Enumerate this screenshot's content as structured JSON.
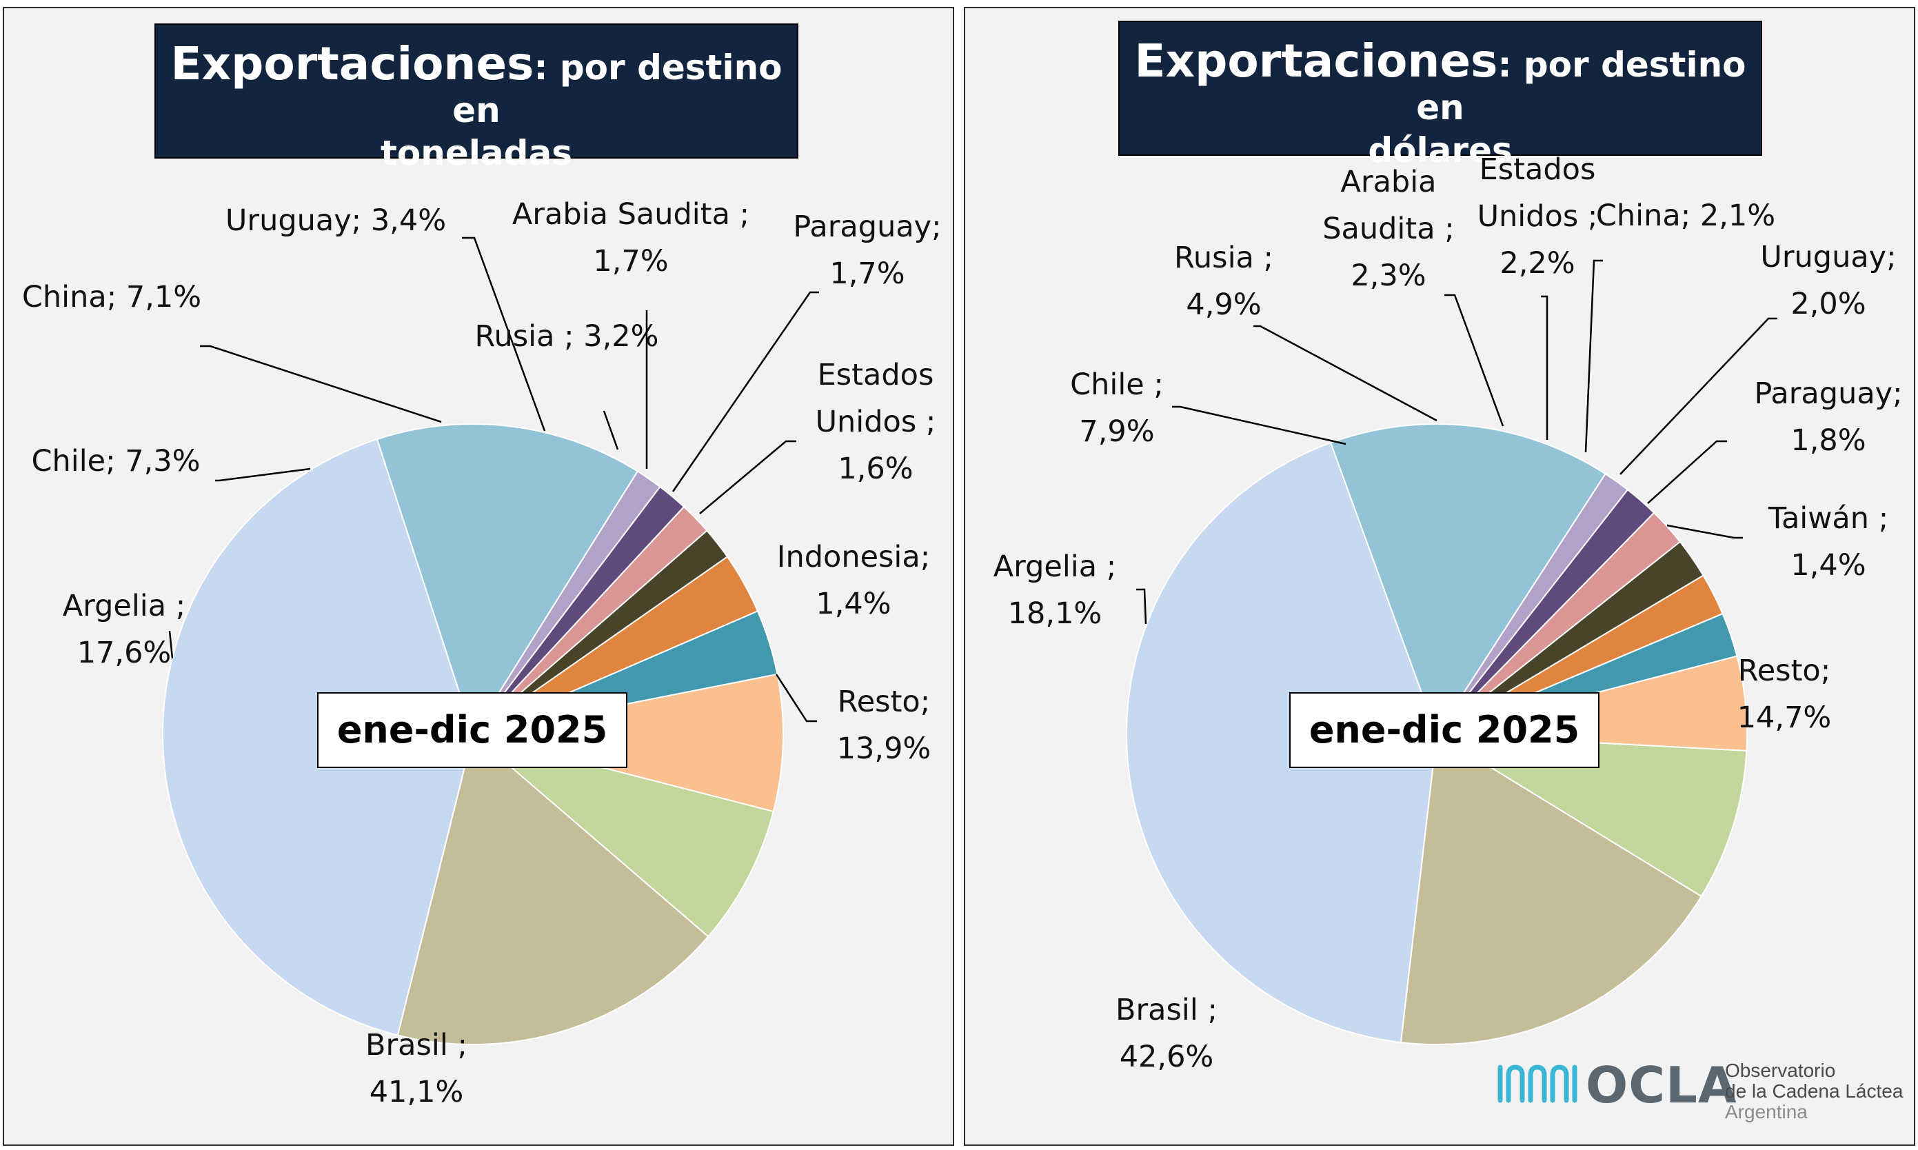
{
  "chart_data": [
    {
      "type": "pie",
      "title": "Exportaciones",
      "subtitle": ": por destino en toneladas",
      "period": "ene-dic 2025",
      "slices": [
        {
          "name": "Brasil",
          "value": 41.1,
          "label": "Brasil ;\n41,1%",
          "color": "#c6d9f1"
        },
        {
          "name": "Argelia",
          "value": 17.6,
          "label": "Argelia ;\n17,6%",
          "color": "#c4bd97"
        },
        {
          "name": "Chile",
          "value": 7.3,
          "label": "Chile; 7,3%",
          "color": "#c3d69b"
        },
        {
          "name": "China",
          "value": 7.1,
          "label": "China; 7,1%",
          "color": "#fac090"
        },
        {
          "name": "Uruguay",
          "value": 3.4,
          "label": "Uruguay; 3,4%",
          "color": "#4198af"
        },
        {
          "name": "Rusia",
          "value": 3.2,
          "label": "Rusia ; 3,2%",
          "color": "#e0853f"
        },
        {
          "name": "Arabia Saudita",
          "value": 1.7,
          "label": "Arabia Saudita ;\n1,7%",
          "color": "#494429"
        },
        {
          "name": "Paraguay",
          "value": 1.7,
          "label": "Paraguay;\n1,7%",
          "color": "#d99694"
        },
        {
          "name": "Estados Unidos",
          "value": 1.6,
          "label": "Estados\nUnidos ;\n1,6%",
          "color": "#604a7b"
        },
        {
          "name": "Indonesia",
          "value": 1.4,
          "label": "Indonesia;\n1,4%",
          "color": "#b3a2c7"
        },
        {
          "name": "Resto",
          "value": 13.9,
          "label": "Resto;\n13,9%",
          "color": "#93c3d6"
        }
      ]
    },
    {
      "type": "pie",
      "title": "Exportaciones",
      "subtitle": ": por destino en dólares",
      "period": "ene-dic 2025",
      "slices": [
        {
          "name": "Brasil",
          "value": 42.6,
          "label": "Brasil ;\n42,6%",
          "color": "#c6d9f1"
        },
        {
          "name": "Argelia",
          "value": 18.1,
          "label": "Argelia ;\n18,1%",
          "color": "#c4bd97"
        },
        {
          "name": "Chile",
          "value": 7.9,
          "label": "Chile ;\n7,9%",
          "color": "#c3d69b"
        },
        {
          "name": "Rusia",
          "value": 4.9,
          "label": "Rusia ;\n4,9%",
          "color": "#fac090"
        },
        {
          "name": "Arabia Saudita",
          "value": 2.3,
          "label": "Arabia\nSaudita ;\n2,3%",
          "color": "#4198af"
        },
        {
          "name": "Estados Unidos",
          "value": 2.2,
          "label": "Estados\nUnidos ;\n2,2%",
          "color": "#e0853f"
        },
        {
          "name": "China",
          "value": 2.1,
          "label": "China; 2,1%",
          "color": "#494429"
        },
        {
          "name": "Uruguay",
          "value": 2.0,
          "label": "Uruguay;\n2,0%",
          "color": "#d99694"
        },
        {
          "name": "Paraguay",
          "value": 1.8,
          "label": "Paraguay;\n1,8%",
          "color": "#604a7b"
        },
        {
          "name": "Taiwán",
          "value": 1.4,
          "label": "Taiwán ;\n1,4%",
          "color": "#b3a2c7"
        },
        {
          "name": "Resto",
          "value": 14.7,
          "label": "Resto;\n14,7%",
          "color": "#93c3d6"
        }
      ]
    }
  ],
  "logo": {
    "word": "OCLA",
    "line1": "Observatorio",
    "line2": "de la Cadena Láctea",
    "line3": "Argentina"
  }
}
